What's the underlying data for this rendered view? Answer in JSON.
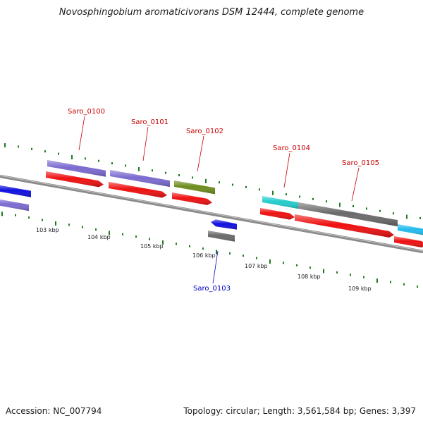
{
  "title": "Novosphingobium aromaticivorans DSM 12444, complete genome",
  "footer": {
    "accession": "Accession: NC_007794",
    "summary": "Topology: circular; Length: 3,561,584 bp; Genes: 3,397"
  },
  "colors": {
    "backbone": "#8a8a8a",
    "tick": "#1f7a1f",
    "label_plus": "#c80000",
    "label_minus": "#0000c0"
  },
  "ticks": [
    {
      "text": "103 kbp"
    },
    {
      "text": "104 kbp"
    },
    {
      "text": "105 kbp"
    },
    {
      "text": "106 kbp"
    },
    {
      "text": "107 kbp"
    },
    {
      "text": "108 kbp"
    },
    {
      "text": "109 kbp"
    }
  ],
  "gene_labels": [
    {
      "text": "Saro_0100",
      "strand": "+"
    },
    {
      "text": "Saro_0101",
      "strand": "+"
    },
    {
      "text": "Saro_0102",
      "strand": "+"
    },
    {
      "text": "Saro_0103",
      "strand": "-"
    },
    {
      "text": "Saro_0104",
      "strand": "+"
    },
    {
      "text": "Saro_0105",
      "strand": "+"
    }
  ],
  "features": [
    {
      "name": "blue-gene-left",
      "color": "#1010e0"
    },
    {
      "name": "purple-bar-left",
      "color": "#7a6ad0"
    },
    {
      "name": "purple-bar-0100",
      "color": "#7a6ad0"
    },
    {
      "name": "red-arrow-0100",
      "color": "#ee1111"
    },
    {
      "name": "purple-bar-0101",
      "color": "#7a6ad0"
    },
    {
      "name": "red-arrow-0101",
      "color": "#ee1111"
    },
    {
      "name": "olive-bar-0102",
      "color": "#6e8c1e"
    },
    {
      "name": "red-arrow-0102",
      "color": "#ee1111"
    },
    {
      "name": "blue-arrow-0103",
      "color": "#1010e0"
    },
    {
      "name": "gray-bar-0103",
      "color": "#6a6a6a"
    },
    {
      "name": "cyan-bar-0104",
      "color": "#22cccc"
    },
    {
      "name": "red-arrow-0104",
      "color": "#ee1111"
    },
    {
      "name": "gray-bar-0105",
      "color": "#6a6a6a"
    },
    {
      "name": "red-arrow-0105",
      "color": "#ee1111"
    },
    {
      "name": "cyan-bar-right",
      "color": "#22bbee"
    },
    {
      "name": "red-arrow-right",
      "color": "#ee1111"
    }
  ]
}
